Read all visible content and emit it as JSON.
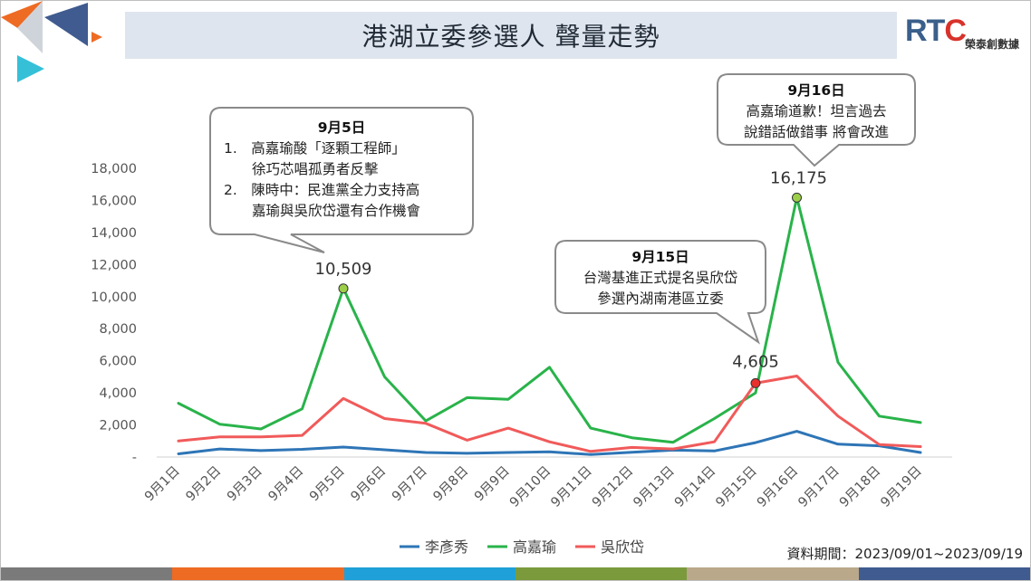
{
  "title": "港湖立委參選人 聲量走勢",
  "logo": {
    "mark_a": "RT",
    "mark_b": "C",
    "text": "榮泰創數據"
  },
  "source_note": "資料期間：2023/09/01~2023/09/19",
  "colors": {
    "李彥秀": "#2e75b6",
    "高嘉瑜": "#29b34a",
    "吳欣岱": "#f15a5a",
    "footer": [
      "#7a7a7a",
      "#ee6b24",
      "#1fa0d8",
      "#7a9a3c",
      "#b9a88a",
      "#3f5b8f"
    ]
  },
  "chart_data": {
    "type": "line",
    "title": "",
    "xlabel": "",
    "ylabel": "",
    "ylim": [
      0,
      18000
    ],
    "y_ticks": [
      "-",
      "2,000",
      "4,000",
      "6,000",
      "8,000",
      "10,000",
      "12,000",
      "14,000",
      "16,000",
      "18,000"
    ],
    "categories": [
      "9月1日",
      "9月2日",
      "9月3日",
      "9月4日",
      "9月5日",
      "9月6日",
      "9月7日",
      "9月8日",
      "9月9日",
      "9月10日",
      "9月11日",
      "9月12日",
      "9月13日",
      "9月14日",
      "9月15日",
      "9月16日",
      "9月17日",
      "9月18日",
      "9月19日"
    ],
    "legend_position": "bottom",
    "grid": false,
    "series": [
      {
        "name": "李彥秀",
        "values": [
          200,
          500,
          400,
          480,
          620,
          450,
          280,
          230,
          280,
          320,
          150,
          300,
          430,
          380,
          900,
          1600,
          800,
          700,
          280
        ]
      },
      {
        "name": "高嘉瑜",
        "values": [
          3350,
          2050,
          1750,
          3000,
          10509,
          5000,
          2250,
          3700,
          3600,
          5600,
          1800,
          1200,
          920,
          2400,
          4000,
          16175,
          5900,
          2550,
          2150
        ]
      },
      {
        "name": "吳欣岱",
        "values": [
          1000,
          1250,
          1250,
          1350,
          3650,
          2400,
          2100,
          1050,
          1800,
          950,
          350,
          600,
          500,
          950,
          4605,
          5050,
          2550,
          780,
          650
        ]
      }
    ],
    "markers": [
      {
        "series": "高嘉瑜",
        "index": 4,
        "label": "10,509",
        "color": "#9ccf49"
      },
      {
        "series": "高嘉瑜",
        "index": 15,
        "label": "16,175",
        "color": "#9ccf49"
      },
      {
        "series": "吳欣岱",
        "index": 14,
        "label": "4,605",
        "color": "#e8302c"
      }
    ],
    "callouts": [
      {
        "title": "9月5日",
        "lines": [
          "1.　高嘉瑜酸「逐顆工程師」",
          "　　徐巧芯唱孤勇者反擊",
          "2.　陳時中：民進黨全力支持高",
          "　　嘉瑜與吳欣岱還有合作機會"
        ]
      },
      {
        "title": "9月15日",
        "lines": [
          "台灣基進正式提名吳欣岱",
          "參選內湖南港區立委"
        ]
      },
      {
        "title": "9月16日",
        "lines": [
          "高嘉瑜道歉！坦言過去",
          "說錯話做錯事 將會改進"
        ]
      }
    ]
  }
}
